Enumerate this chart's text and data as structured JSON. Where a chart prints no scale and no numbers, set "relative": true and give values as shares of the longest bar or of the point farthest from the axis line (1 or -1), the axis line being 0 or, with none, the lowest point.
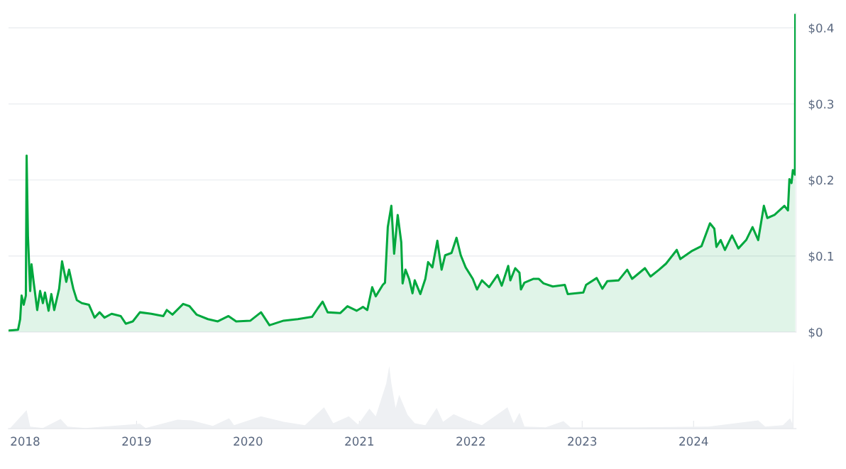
{
  "chart_data": [
    {
      "type": "area",
      "tick_labels": "y",
      "grid": "y",
      "xlim": [
        2017.85,
        2024.92
      ],
      "ylim": [
        0,
        0.42
      ],
      "yticks": [
        {
          "value": 0,
          "label": "$0"
        },
        {
          "value": 0.1,
          "label": "$0.1"
        },
        {
          "value": 0.2,
          "label": "$0.2"
        },
        {
          "value": 0.3,
          "label": "$0.3"
        },
        {
          "value": 0.4,
          "label": "$0.4"
        }
      ],
      "series": [
        {
          "color": "#00a83e",
          "x": [
            2017.86,
            2017.936,
            2017.955,
            2017.968,
            2017.987,
            2018.006,
            2018.013,
            2018.025,
            2018.045,
            2018.057,
            2018.076,
            2018.108,
            2018.134,
            2018.159,
            2018.178,
            2018.21,
            2018.235,
            2018.261,
            2018.305,
            2018.331,
            2018.369,
            2018.394,
            2018.432,
            2018.464,
            2018.509,
            2018.572,
            2018.623,
            2018.668,
            2018.712,
            2018.776,
            2018.858,
            2018.903,
            2018.966,
            2019.03,
            2019.132,
            2019.24,
            2019.271,
            2019.322,
            2019.418,
            2019.475,
            2019.538,
            2019.64,
            2019.729,
            2019.825,
            2019.894,
            2020.022,
            2020.117,
            2020.193,
            2020.32,
            2020.448,
            2020.575,
            2020.626,
            2020.67,
            2020.715,
            2020.829,
            2020.893,
            2020.975,
            2021.032,
            2021.071,
            2021.115,
            2021.147,
            2021.21,
            2021.23,
            2021.255,
            2021.287,
            2021.312,
            2021.344,
            2021.376,
            2021.388,
            2021.414,
            2021.446,
            2021.477,
            2021.497,
            2021.547,
            2021.592,
            2021.617,
            2021.655,
            2021.7,
            2021.738,
            2021.77,
            2021.827,
            2021.872,
            2021.91,
            2021.954,
            2022.018,
            2022.056,
            2022.1,
            2022.164,
            2022.24,
            2022.278,
            2022.336,
            2022.355,
            2022.399,
            2022.437,
            2022.45,
            2022.482,
            2022.564,
            2022.609,
            2022.653,
            2022.736,
            2022.844,
            2022.87,
            2023.01,
            2023.035,
            2023.13,
            2023.181,
            2023.226,
            2023.327,
            2023.404,
            2023.448,
            2023.563,
            2023.613,
            2023.69,
            2023.753,
            2023.849,
            2023.881,
            2023.989,
            2024.071,
            2024.147,
            2024.186,
            2024.205,
            2024.243,
            2024.281,
            2024.345,
            2024.402,
            2024.472,
            2024.529,
            2024.58,
            2024.631,
            2024.662,
            2024.726,
            2024.815,
            2024.847,
            2024.86,
            2024.879,
            2024.891,
            2024.91,
            2024.913
          ],
          "values": [
            0.002,
            0.003,
            0.017,
            0.048,
            0.036,
            0.048,
            0.232,
            0.126,
            0.054,
            0.089,
            0.066,
            0.029,
            0.054,
            0.038,
            0.052,
            0.028,
            0.05,
            0.029,
            0.057,
            0.093,
            0.066,
            0.082,
            0.057,
            0.042,
            0.038,
            0.036,
            0.019,
            0.026,
            0.019,
            0.024,
            0.021,
            0.011,
            0.014,
            0.026,
            0.024,
            0.021,
            0.029,
            0.023,
            0.037,
            0.034,
            0.023,
            0.017,
            0.014,
            0.021,
            0.014,
            0.015,
            0.026,
            0.009,
            0.015,
            0.017,
            0.02,
            0.031,
            0.04,
            0.026,
            0.025,
            0.034,
            0.028,
            0.033,
            0.029,
            0.059,
            0.047,
            0.062,
            0.065,
            0.138,
            0.166,
            0.103,
            0.154,
            0.118,
            0.064,
            0.082,
            0.07,
            0.051,
            0.068,
            0.05,
            0.07,
            0.092,
            0.085,
            0.12,
            0.082,
            0.101,
            0.104,
            0.124,
            0.101,
            0.085,
            0.07,
            0.056,
            0.068,
            0.059,
            0.075,
            0.061,
            0.087,
            0.068,
            0.084,
            0.078,
            0.056,
            0.065,
            0.07,
            0.07,
            0.064,
            0.06,
            0.062,
            0.05,
            0.052,
            0.062,
            0.071,
            0.057,
            0.067,
            0.068,
            0.082,
            0.07,
            0.084,
            0.073,
            0.082,
            0.09,
            0.108,
            0.096,
            0.107,
            0.113,
            0.143,
            0.136,
            0.112,
            0.121,
            0.108,
            0.127,
            0.11,
            0.121,
            0.138,
            0.121,
            0.166,
            0.15,
            0.154,
            0.166,
            0.16,
            0.201,
            0.196,
            0.213,
            0.207,
            0.417
          ]
        }
      ]
    },
    {
      "type": "area",
      "relative": true,
      "tick_labels": "x",
      "xlim": [
        2017.85,
        2024.92
      ],
      "xticks": [
        2018,
        2019,
        2020,
        2021,
        2022,
        2023,
        2024
      ],
      "series": [
        {
          "color": "#eef0f3",
          "x": [
            2017.86,
            2018.013,
            2018.045,
            2018.159,
            2018.318,
            2018.381,
            2018.54,
            2019.03,
            2019.081,
            2019.367,
            2019.494,
            2019.685,
            2019.831,
            2019.875,
            2020.117,
            2020.32,
            2020.511,
            2020.683,
            2020.765,
            2020.905,
            2020.988,
            2021.09,
            2021.147,
            2021.242,
            2021.268,
            2021.287,
            2021.325,
            2021.357,
            2021.433,
            2021.497,
            2021.592,
            2021.694,
            2021.751,
            2021.846,
            2021.973,
            2022.1,
            2022.278,
            2022.329,
            2022.386,
            2022.437,
            2022.482,
            2022.673,
            2022.832,
            2022.895,
            2023.499,
            2024.135,
            2024.58,
            2024.643,
            2024.802,
            2024.866,
            2024.885,
            2024.898
          ],
          "values": [
            0,
            0.27,
            0.03,
            0.01,
            0.14,
            0.03,
            0.01,
            0.07,
            0.01,
            0.13,
            0.12,
            0.04,
            0.15,
            0.05,
            0.18,
            0.1,
            0.05,
            0.31,
            0.08,
            0.18,
            0.06,
            0.29,
            0.18,
            0.66,
            0.91,
            0.66,
            0.3,
            0.49,
            0.2,
            0.08,
            0.05,
            0.3,
            0.1,
            0.21,
            0.12,
            0.05,
            0.25,
            0.31,
            0.08,
            0.23,
            0.03,
            0.02,
            0.11,
            0.02,
            0.02,
            0.03,
            0.12,
            0.03,
            0.05,
            0.15,
            0.08,
            1.0
          ]
        }
      ]
    }
  ]
}
